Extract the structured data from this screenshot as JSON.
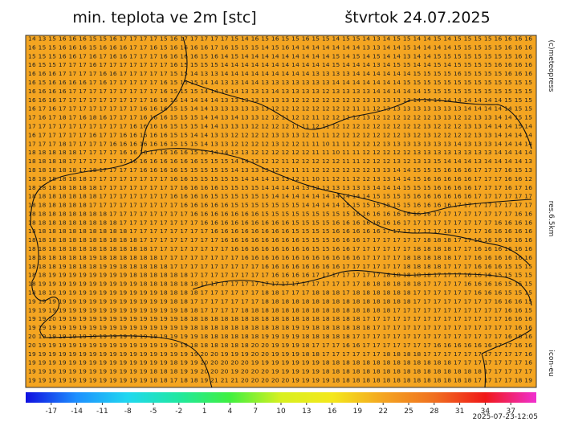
{
  "header": {
    "title": "min. teplota ve 2m [stc]",
    "date": "štvrtok 24.07.2025"
  },
  "side_labels": {
    "copyright": "(c)meteopress",
    "resolution": "res.6.5km",
    "model": "icon-eu"
  },
  "timestamp": "2025-07-23-12:05",
  "map": {
    "background": "#f4a521",
    "grid_rows": [
      "14 13 15 16 16 16 15 15 16 17 17 17 17 15 16 17 17 17 17 17 15 14 16 15 16 15 15 16 15 15 14 15 15 14 13 14 15 15 14 14 15 14 15 15 15 15 16 16 16 16",
      "16 15 15 16 16 16 15 16 16 16 17 17 16 15 16 16 16 16 17 16 15 15 15 14 15 16 14 14 14 14 14 14 14 13 13 14 14 15 14 14 14 14 15 15 15 15 15 16 16 16",
      "15 15 15 16 16 17 16 17 16 16 17 17 17 16 16 16 16 15 16 14 15 14 14 14 14 14 14 14 14 14 15 14 15 14 15 14 14 13 14 14 15 15 15 15 15 15 15 15 16 16",
      "16 15 15 17 17 17 16 17 17 17 17 17 17 17 16 15 15 15 15 14 14 14 14 14 14 14 14 14 14 14 15 14 14 14 13 14 15 15 14 14 15 14 15 15 15 15 16 16 16 16",
      "16 16 16 17 17 17 17 16 16 17 17 17 17 17 15 15 14 13 13 14 14 14 14 14 14 14 14 14 13 13 13 13 14 14 14 14 14 14 15 15 15 15 16 15 15 15 15 16 16 16",
      "16 15 16 16 16 16 17 16 17 17 17 17 17 16 15 15 15 14 14 13 13 14 14 13 13 13 13 13 13 13 14 14 14 14 14 14 14 15 15 15 15 15 15 15 15 15 15 15 15 15",
      "16 16 16 16 17 17 17 17 17 17 17 17 17 16 15 15 15 14 14 14 14 13 13 13 14 13 13 13 13 12 13 13 13 13 14 14 14 14 14 15 15 15 15 15 15 15 15 15 15 15",
      "16 16 16 17 17 17 17 17 17 17 17 17 16 16 16 14 14 14 14 13 13 13 13 13 13 13 12 12 12 12 12 12 12 13 13 13 13 13 14 14 14 14 14 14 14 14 14 15 15 15",
      "16 17 16 17 17 17 17 17 17 17 17 16 16 16 15 15 14 14 13 13 13 13 13 13 12 12 12 12 12 12 12 12 11 11 12 13 13 13 13 13 13 13 13 14 14 14 14 14 15 15",
      "17 16 17 18 17 16 18 16 17 17 17 16 16 16 15 15 15 14 14 13 14 13 13 12 12 11 12 12 11 12 12 12 12 13 12 12 12 12 12 12 13 13 12 12 13 13 14 14 15 15",
      "17 17 17 17 17 17 17 17 17 17 16 16 16 16 15 15 15 14 14 13 13 13 12 12 12 12 11 11 12 11 12 12 12 12 12 12 12 12 12 13 12 12 12 13 13 14 14 14 15 14",
      "16 17 17 17 17 17 16 17 17 16 16 16 16 16 15 15 14 14 13 13 12 12 12 12 13 13 13 12 11 11 12 12 12 12 12 12 12 13 12 13 12 12 12 12 13 13 14 14 14 14",
      "17 17 17 18 17 17 17 17 16 16 16 16 16 16 15 15 15 14 13 13 12 12 12 12 13 12 12 11 11 10 11 11 12 12 12 13 13 13 13 13 13 13 14 13 13 13 14 14 14 14",
      "18 18 18 18 18 17 17 17 17 16 16 16 17 16 16 16 15 15 14 14 13 13 12 12 12 12 12 12 11 11 10 11 11 12 12 12 12 12 13 13 13 13 13 13 13 13 14 14 14 14",
      "18 18 18 18 17 17 17 17 17 17 16 16 16 16 16 16 16 15 15 15 14 14 13 12 12 11 12 12 12 12 12 11 11 12 12 12 13 12 13 13 15 14 14 14 13 14 14 14 14 13",
      "18 18 18 18 18 17 18 17 17 17 17 16 16 16 16 15 15 15 15 15 14 13 13 13 12 12 11 11 12 12 12 12 12 12 13 13 14 14 15 15 15 16 16 16 17 17 17 16 15 13",
      "18 18 18 18 18 18 17 17 17 17 17 17 17 17 16 16 15 15 15 15 15 14 14 14 13 13 12 11 10 11 12 11 12 12 13 13 14 14 15 16 16 16 16 16 17 17 17 16 16 12",
      "18 18 18 18 18 18 18 17 17 17 17 17 17 17 17 16 16 16 16 15 15 15 15 14 14 14 14 13 12 13 13 13 13 13 14 14 14 15 15 15 16 16 16 16 17 17 17 16 17 16",
      "18 18 18 18 18 18 18 17 17 17 17 17 17 17 16 16 16 16 15 15 15 15 15 15 14 14 14 14 14 14 14 14 14 14 15 15 15 15 16 16 16 16 16 16 17 17 17 17 17 17",
      "18 18 18 18 18 18 17 17 17 17 17 17 17 17 17 16 16 16 16 16 15 15 15 15 15 15 15 14 14 14 14 15 15 15 15 15 15 15 16 16 16 16 17 17 17 17 17 17 17 17",
      "18 18 18 18 18 18 18 18 17 17 17 17 17 17 17 17 16 16 16 16 16 16 16 15 15 15 15 15 15 15 15 15 16 16 16 16 16 16 16 16 17 17 17 17 17 17 17 17 16 16",
      "18 18 18 18 18 18 18 18 18 17 17 17 17 17 17 17 17 16 16 16 16 16 16 16 16 16 15 15 15 15 16 16 16 16 16 16 16 17 17 17 17 17 17 17 17 17 16 16 16 16",
      "18 18 18 18 18 18 18 18 18 18 17 17 17 17 17 17 17 17 16 16 16 16 16 16 16 16 15 15 15 15 16 16 16 16 16 17 17 17 17 17 17 18 17 17 17 16 16 16 16 16",
      "18 18 18 18 18 18 18 18 18 18 18 17 17 17 17 17 17 17 17 16 16 16 16 16 16 16 16 15 15 15 16 16 16 17 17 17 17 17 17 18 18 18 17 17 16 16 16 16 16 16",
      "18 18 18 18 18 18 18 18 18 18 18 18 17 17 17 17 17 17 17 17 16 16 16 16 16 16 16 16 15 15 16 16 17 17 17 17 17 17 18 18 18 18 17 17 16 16 16 16 16 16",
      "18 18 18 18 18 18 19 18 18 18 18 18 18 17 17 17 17 17 17 17 17 16 16 16 16 16 16 16 16 16 16 16 16 17 17 17 17 18 18 18 18 18 17 17 16 16 16 16 16 16",
      "18 18 18 19 18 18 18 19 19 18 18 18 18 18 17 17 17 17 17 17 17 17 17 16 16 16 16 16 16 16 16 17 17 17 17 17 17 18 18 18 18 17 17 17 16 16 16 15 15 15",
      "18 18 19 19 19 19 19 19 19 19 18 18 18 18 18 18 17 17 17 17 17 17 17 17 16 16 16 16 17 17 17 17 17 17 17 18 18 18 18 18 17 17 17 16 16 16 15 15 15 15",
      "18 19 19 19 19 19 19 19 19 19 19 18 18 18 18 18 18 17 17 17 17 17 17 17 17 17 17 17 17 17 17 17 17 18 18 18 18 18 18 17 17 17 17 16 16 16 16 15 15 15",
      "18 18 19 19 19 19 19 19 19 19 19 19 19 18 18 18 18 17 17 17 17 17 17 18 18 17 17 17 18 18 18 17 18 18 18 18 18 18 17 17 17 17 17 17 16 16 16 15 15 15",
      "19 19 19 19 19 19 19 19 19 19 19 19 19 19 18 18 17 17 17 17 17 17 17 18 18 18 18 18 18 18 18 18 18 18 18 18 18 18 17 17 17 17 17 17 17 17 16 16 16 15",
      "19 19 19 19 19 19 19 19 19 19 19 19 19 19 19 18 18 17 17 17 17 18 18 18 18 18 18 18 18 18 18 18 18 18 18 18 17 17 17 17 17 17 17 17 17 17 17 16 16 15",
      "19 19 20 19 19 19 19 19 19 19 19 19 19 19 19 18 18 18 18 18 18 18 18 18 18 18 18 18 18 18 18 18 18 17 17 17 17 17 17 17 17 17 17 17 17 17 17 16 16 16",
      "19 19 19 19 19 19 19 19 19 19 19 19 19 19 19 19 18 18 18 18 18 18 18 18 18 18 19 19 18 18 18 18 18 18 17 17 17 17 17 17 17 17 17 17 17 17 17 17 16 16",
      "20 19 19 19 19 19 19 19 19 19 19 19 19 19 19 19 19 18 18 18 18 18 18 19 19 19 19 18 18 18 18 18 17 17 17 17 17 17 17 17 17 17 17 17 17 17 17 16 16 16",
      "20 19 19 19 19 19 19 19 19 19 19 19 19 19 19 19 18 18 18 18 18 18 20 20 19 19 19 18 17 17 17 16 16 17 17 17 17 17 17 17 16 16 16 16 16 16 17 17 16 16",
      "19 19 19 19 19 19 19 19 19 19 19 19 19 19 19 19 19 20 20 19 19 19 20 20 19 19 19 18 18 17 17 17 17 17 17 18 18 18 18 17 17 17 17 17 17 17 17 17 17 16",
      "19 19 19 19 19 19 19 19 19 19 19 19 19 19 18 19 19 20 20 20 20 20 19 19 19 19 19 19 19 18 18 18 18 18 18 18 18 18 18 18 18 18 17 17 17 17 17 17 17 16",
      "19 19 19 19 19 19 19 19 19 19 19 19 18 18 18 19 19 20 20 20 19 20 20 20 19 19 19 19 19 18 18 18 18 18 18 18 18 18 18 18 18 18 18 18 18 17 17 17 17 17",
      "19 19 19 19 19 19 19 19 19 19 19 19 18 18 17 18 18 19 21 21 21 20 20 20 20 20 19 19 19 19 18 18 18 18 18 18 18 18 18 18 18 18 18 18 17 17 17 17 18 19"
    ]
  },
  "colorbar": {
    "range": [
      -20,
      40
    ],
    "colors": [
      "#1010e0",
      "#1e90ff",
      "#20d8f0",
      "#20e8a0",
      "#40f040",
      "#d8f020",
      "#f4e81c",
      "#f4a521",
      "#f07020",
      "#f01818",
      "#f030d0"
    ],
    "ticks": [
      -17,
      -14,
      -11,
      -8,
      -5,
      -2,
      1,
      4,
      7,
      10,
      13,
      16,
      19,
      22,
      25,
      28,
      31,
      34,
      37
    ]
  }
}
